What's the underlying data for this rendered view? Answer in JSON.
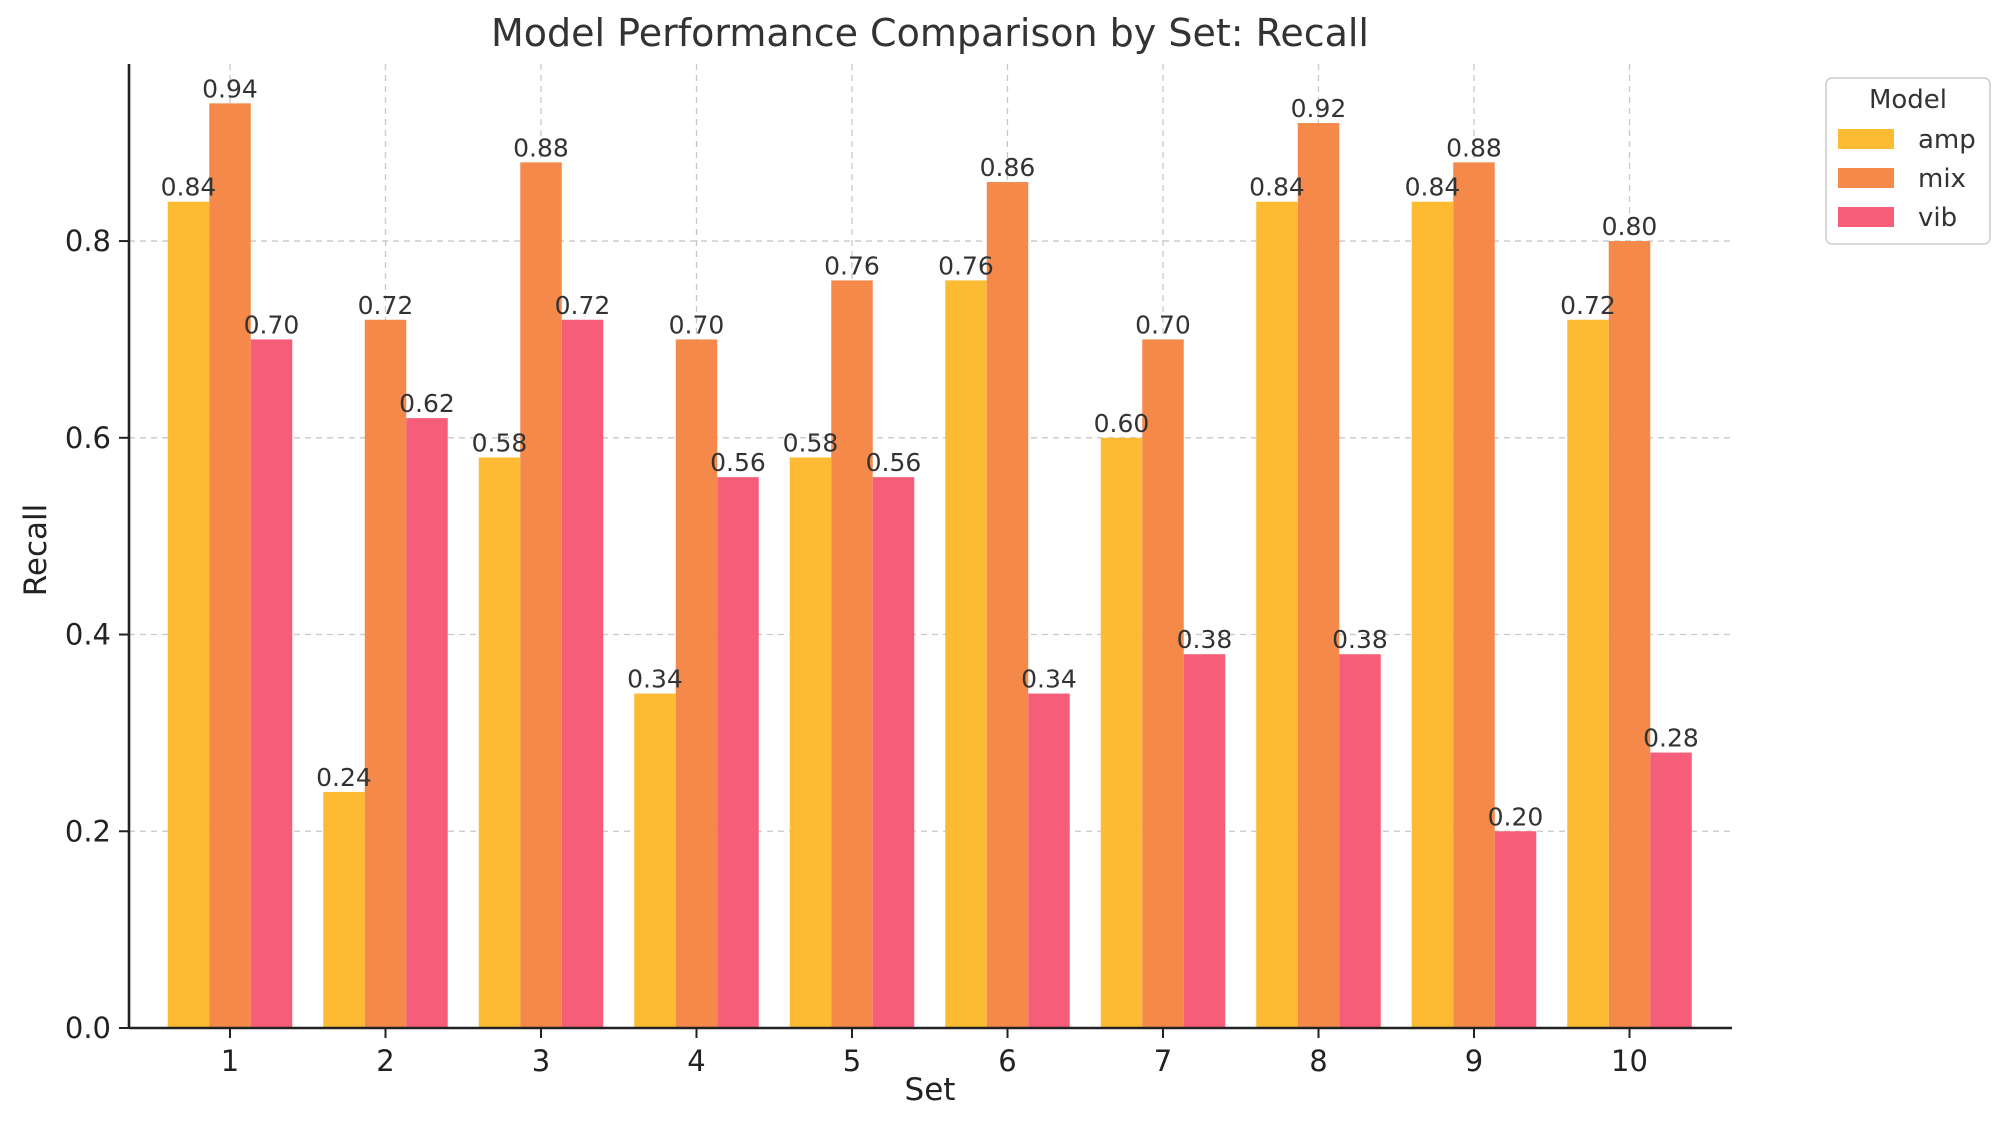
{
  "chart_data": {
    "type": "bar",
    "title": "Model Performance Comparison by Set: Recall",
    "xlabel": "Set",
    "ylabel": "Recall",
    "categories": [
      "1",
      "2",
      "3",
      "4",
      "5",
      "6",
      "7",
      "8",
      "9",
      "10"
    ],
    "ylim": [
      0,
      0.98
    ],
    "yticks": [
      "0.0",
      "0.2",
      "0.4",
      "0.6",
      "0.8"
    ],
    "ytick_values": [
      0,
      0.2,
      0.4,
      0.6,
      0.8
    ],
    "grid": true,
    "legend": {
      "title": "Model",
      "placement": "outside-top-right"
    },
    "series": [
      {
        "name": "amp",
        "color": "#FDBA33",
        "values": [
          0.84,
          0.24,
          0.58,
          0.34,
          0.58,
          0.76,
          0.6,
          0.84,
          0.84,
          0.72
        ]
      },
      {
        "name": "mix",
        "color": "#F5894A",
        "values": [
          0.94,
          0.72,
          0.88,
          0.7,
          0.76,
          0.86,
          0.7,
          0.92,
          0.88,
          0.8
        ]
      },
      {
        "name": "vib",
        "color": "#F65D79",
        "values": [
          0.7,
          0.62,
          0.72,
          0.56,
          0.56,
          0.34,
          0.38,
          0.38,
          0.2,
          0.28
        ]
      }
    ]
  }
}
